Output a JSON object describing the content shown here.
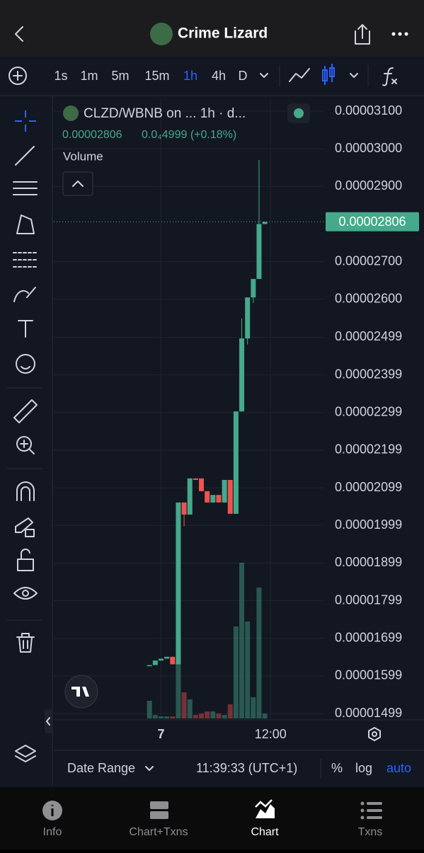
{
  "header": {
    "title": "Crime Lizard"
  },
  "toolbar": {
    "intervals": [
      "1s",
      "1m",
      "5m",
      "15m",
      "1h",
      "4h",
      "D"
    ],
    "active_interval": 4
  },
  "legend": {
    "symbol": "CLZD/WBNB on ... 1h · d...",
    "price": "0.00002806",
    "change": "0.0₄4999 (+0.18%)",
    "volume_label": "Volume"
  },
  "chart_data": {
    "type": "candlestick",
    "categories": [
      null,
      null,
      null,
      null,
      null,
      null,
      null,
      null,
      null,
      null,
      null,
      null,
      null,
      null,
      null,
      null,
      null,
      null,
      null,
      null,
      null
    ],
    "open": [
      1.625e-05,
      1.628e-05,
      1.64e-05,
      1.645e-05,
      1.65e-05,
      1.63e-05,
      2.06e-05,
      2.028e-05,
      2.124e-05,
      2.124e-05,
      2.09e-05,
      2.06e-05,
      2.08e-05,
      2.06e-05,
      2.12e-05,
      2.03e-05,
      2.302e-05,
      2.496e-05,
      2.605e-05,
      2.654e-05,
      2.8e-05
    ],
    "high": [
      1.628e-05,
      1.64e-05,
      1.645e-05,
      1.65e-05,
      1.65e-05,
      2.06e-05,
      2.06e-05,
      2.124e-05,
      2.124e-05,
      2.124e-05,
      2.09e-05,
      2.08e-05,
      2.08e-05,
      2.12e-05,
      2.12e-05,
      2.302e-05,
      2.549e-05,
      2.605e-05,
      2.654e-05,
      2.97e-05,
      2.806e-05
    ],
    "low": [
      1.625e-05,
      1.628e-05,
      1.64e-05,
      1.645e-05,
      1.63e-05,
      1.63e-05,
      1.997e-05,
      2.028e-05,
      2.12e-05,
      2.09e-05,
      2.06e-05,
      2.06e-05,
      2.06e-05,
      2.06e-05,
      2.03e-05,
      2.03e-05,
      2.302e-05,
      2.48e-05,
      2.59e-05,
      2.654e-05,
      2.8e-05
    ],
    "close": [
      1.628e-05,
      1.64e-05,
      1.645e-05,
      1.65e-05,
      1.63e-05,
      2.06e-05,
      2.028e-05,
      2.124e-05,
      2.12e-05,
      2.09e-05,
      2.06e-05,
      2.08e-05,
      2.06e-05,
      2.12e-05,
      2.03e-05,
      2.302e-05,
      2.496e-05,
      2.605e-05,
      2.654e-05,
      2.8e-05,
      2.806e-05
    ],
    "volume": [
      25,
      5,
      3,
      3,
      3,
      85,
      37,
      27,
      5,
      7,
      10,
      10,
      7,
      5,
      20,
      130,
      220,
      137,
      30,
      185,
      7
    ],
    "up_color": "#45a98b",
    "down_color": "#ef5350",
    "ylim": [
      1.486e-05,
      3.132e-05
    ],
    "yticks": [
      {
        "value": 3.1e-05,
        "label": "0.00003100"
      },
      {
        "value": 3e-05,
        "label": "0.00003000"
      },
      {
        "value": 2.9e-05,
        "label": "0.00002900"
      },
      {
        "value": 2.7e-05,
        "label": "0.00002700"
      },
      {
        "value": 2.6e-05,
        "label": "0.00002600"
      },
      {
        "value": 2.499e-05,
        "label": "0.00002499"
      },
      {
        "value": 2.399e-05,
        "label": "0.00002399"
      },
      {
        "value": 2.299e-05,
        "label": "0.00002299"
      },
      {
        "value": 2.199e-05,
        "label": "0.00002199"
      },
      {
        "value": 2.099e-05,
        "label": "0.00002099"
      },
      {
        "value": 1.999e-05,
        "label": "0.00001999"
      },
      {
        "value": 1.899e-05,
        "label": "0.00001899"
      },
      {
        "value": 1.799e-05,
        "label": "0.00001799"
      },
      {
        "value": 1.699e-05,
        "label": "0.00001699"
      },
      {
        "value": 1.599e-05,
        "label": "0.00001599"
      },
      {
        "value": 1.499e-05,
        "label": "0.00001499"
      }
    ],
    "xlim": [
      -16.6,
      30.3
    ],
    "xticks": [
      {
        "value": 2,
        "label": "7"
      },
      {
        "value": 21,
        "label": "12:00"
      }
    ],
    "last_price": {
      "value": 2.806e-05,
      "label": "0.00002806"
    },
    "grid": true
  },
  "bottom_bar": {
    "date_range": "Date Range",
    "time": "11:39:33 (UTC+1)",
    "percent": "%",
    "log": "log",
    "auto": "auto"
  },
  "tabs": [
    "Info",
    "Chart+Txns",
    "Chart",
    "Txns"
  ]
}
